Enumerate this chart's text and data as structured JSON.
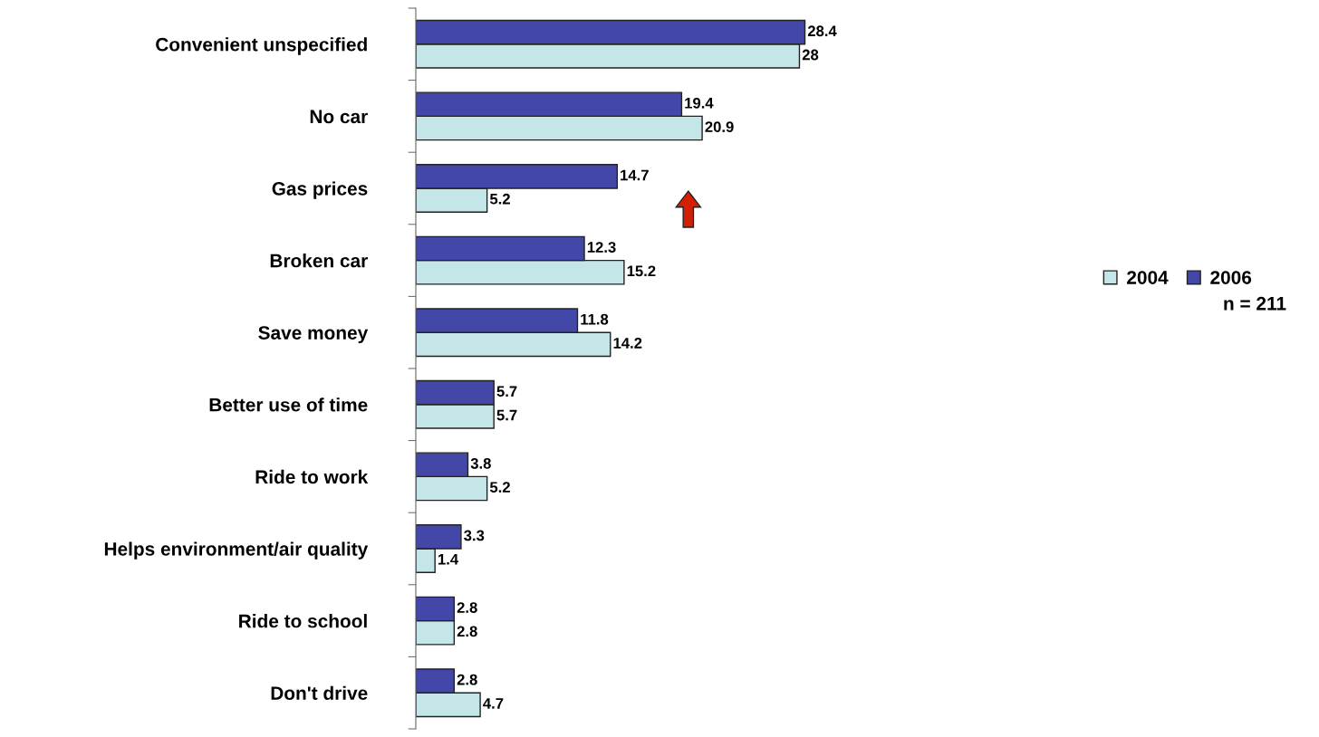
{
  "chart_data": {
    "type": "bar",
    "orientation": "horizontal",
    "categories": [
      "Convenient unspecified",
      "No car",
      "Gas prices",
      "Broken car",
      "Save money",
      "Better use of time",
      "Ride to work",
      "Helps environment/air quality",
      "Ride to school",
      "Don't drive"
    ],
    "series": [
      {
        "name": "2004",
        "color": "#c4e6e8",
        "values": [
          28,
          20.9,
          5.2,
          15.2,
          14.2,
          5.7,
          5.2,
          1.4,
          2.8,
          4.7
        ]
      },
      {
        "name": "2006",
        "color": "#4348a8",
        "values": [
          28.4,
          19.4,
          14.7,
          12.3,
          11.8,
          5.7,
          3.8,
          3.3,
          2.8,
          2.8
        ]
      }
    ],
    "tick_labels": "y",
    "data_labels": true,
    "grid": false,
    "legend": "right",
    "annotations": [
      "n = 211"
    ]
  }
}
